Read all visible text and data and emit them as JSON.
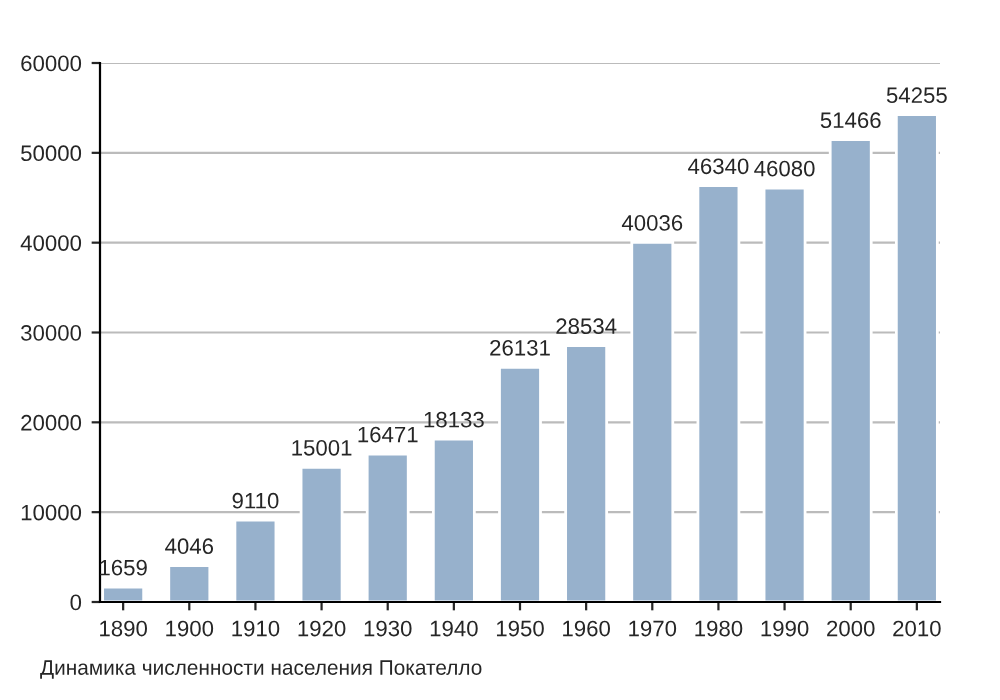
{
  "chart_data": {
    "type": "bar",
    "categories": [
      "1890",
      "1900",
      "1910",
      "1920",
      "1930",
      "1940",
      "1950",
      "1960",
      "1970",
      "1980",
      "1990",
      "2000",
      "2010"
    ],
    "values": [
      1659,
      4046,
      9110,
      15001,
      16471,
      18133,
      26131,
      28534,
      40036,
      46340,
      46080,
      51466,
      54255
    ],
    "color": "#97b1cc",
    "ylim": [
      0,
      60000
    ],
    "yticks": [
      0,
      10000,
      20000,
      30000,
      40000,
      50000,
      60000
    ],
    "grid": "y",
    "data_labels": true,
    "legend": false,
    "annotations": [
      "Динамика численности населения Покателло"
    ]
  }
}
